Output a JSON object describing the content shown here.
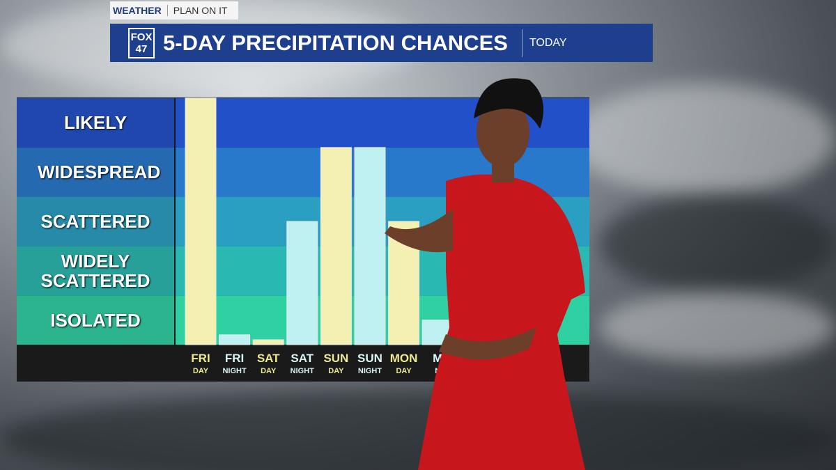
{
  "header": {
    "brand": "WEATHER",
    "slogan": "PLAN ON IT",
    "logo_top": "FOX",
    "logo_bottom": "47"
  },
  "chart_data": {
    "type": "bar",
    "title": "5-DAY PRECIPITATION CHANCES",
    "subtitle": "TODAY",
    "categories": [
      "FRI",
      "FRI",
      "SAT",
      "SAT",
      "SUN",
      "SUN",
      "MON",
      "M"
    ],
    "category_sublabels": [
      "DAY",
      "NIGHT",
      "DAY",
      "NIGHT",
      "DAY",
      "NIGHT",
      "DAY",
      "N"
    ],
    "values": [
      5,
      0.2,
      0.1,
      2.5,
      4,
      4,
      2.5,
      0.5
    ],
    "colors": [
      "#f4f0b2",
      "#bff0f2",
      "#f4f0b2",
      "#bff0f2",
      "#f4f0b2",
      "#bff0f2",
      "#f4f0b2",
      "#bff0f2"
    ],
    "ylim": [
      0,
      5
    ],
    "yticks": [
      {
        "value": 0.5,
        "label": "ISOLATED"
      },
      {
        "value": 1.5,
        "label": "WIDELY SCATTERED"
      },
      {
        "value": 2.5,
        "label": "SCATTERED"
      },
      {
        "value": 3.5,
        "label": "WIDESPREAD"
      },
      {
        "value": 4.5,
        "label": "LIKELY"
      }
    ],
    "band_colors": [
      "#2fd0a2",
      "#2ab9b2",
      "#2a9fc2",
      "#2878cc",
      "#2250c8"
    ],
    "label_colors": [
      "#f0e890",
      "#d8f4f4"
    ]
  }
}
